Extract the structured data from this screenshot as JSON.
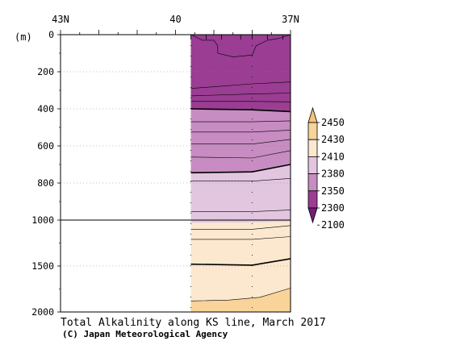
{
  "chart_data": {
    "type": "heatmap",
    "title": "Total Alkalinity along KS line, March 2017",
    "credit": "(C) Japan Meteorological Agency",
    "xlabel": "",
    "ylabel": "(m)",
    "x_axis": {
      "range": [
        43,
        37
      ],
      "tick_labels": [
        {
          "value": 43,
          "label": "43N"
        },
        {
          "value": 40,
          "label": "40"
        },
        {
          "value": 37,
          "label": "37N"
        }
      ]
    },
    "y_axis": {
      "upper_range": [
        0,
        1000
      ],
      "lower_range": [
        1000,
        2000
      ],
      "upper_ticks": [
        {
          "value": 0,
          "label": "0"
        },
        {
          "value": 200,
          "label": "200"
        },
        {
          "value": 400,
          "label": "400"
        },
        {
          "value": 600,
          "label": "600"
        },
        {
          "value": 800,
          "label": "800"
        },
        {
          "value": 1000,
          "label": "1000"
        }
      ],
      "lower_ticks": [
        {
          "value": 1500,
          "label": "1500"
        },
        {
          "value": 2000,
          "label": "2000"
        }
      ]
    },
    "data_extent": {
      "lat_north": 39.6,
      "lat_south": 37.0
    },
    "stations": [
      39.6,
      39.2,
      38.8,
      38.3,
      38.0,
      37.6,
      37.2
    ],
    "bands": [
      {
        "min": 2100,
        "max": 2300,
        "color": "#9a3d93",
        "top": [
          [
            39.6,
            0
          ],
          [
            37.0,
            0
          ]
        ],
        "bottom": [
          [
            39.6,
            400
          ],
          [
            38.0,
            405
          ],
          [
            37.0,
            415
          ]
        ]
      },
      {
        "min": 2300,
        "max": 2350,
        "color": "#c78cc2",
        "top": [
          [
            39.6,
            400
          ],
          [
            38.0,
            405
          ],
          [
            37.0,
            415
          ]
        ],
        "bottom": [
          [
            39.6,
            745
          ],
          [
            38.0,
            740
          ],
          [
            37.0,
            700
          ]
        ]
      },
      {
        "min": 2350,
        "max": 2380,
        "color": "#e2c6e0",
        "top": [
          [
            39.6,
            745
          ],
          [
            38.0,
            740
          ],
          [
            37.0,
            700
          ]
        ],
        "bottom": [
          [
            39.6,
            1030
          ],
          [
            38.0,
            1025
          ],
          [
            37.0,
            1015
          ]
        ]
      },
      {
        "min": 2380,
        "max": 2410,
        "color": "#fbe8cf",
        "top": [
          [
            39.6,
            1030
          ],
          [
            38.0,
            1025
          ],
          [
            37.0,
            1015
          ]
        ],
        "bottom": [
          [
            39.6,
            1880
          ],
          [
            38.6,
            1870
          ],
          [
            37.8,
            1840
          ],
          [
            37.0,
            1740
          ]
        ]
      },
      {
        "min": 2410,
        "max": 2430,
        "color": "#f8d39a",
        "top": [
          [
            39.6,
            1880
          ],
          [
            38.6,
            1870
          ],
          [
            37.8,
            1840
          ],
          [
            37.0,
            1740
          ]
        ],
        "bottom": [
          [
            39.6,
            2000
          ],
          [
            37.0,
            2000
          ]
        ]
      }
    ],
    "contours": [
      {
        "bold": false,
        "points": [
          [
            39.6,
            0
          ],
          [
            39.3,
            30
          ],
          [
            39.0,
            30
          ],
          [
            38.9,
            60
          ],
          [
            38.9,
            100
          ],
          [
            38.5,
            120
          ],
          [
            38.0,
            110
          ],
          [
            37.9,
            60
          ],
          [
            37.6,
            30
          ],
          [
            37.3,
            20
          ],
          [
            37.0,
            0
          ]
        ]
      },
      {
        "bold": false,
        "points": [
          [
            39.6,
            290
          ],
          [
            38.0,
            265
          ],
          [
            37.0,
            255
          ]
        ]
      },
      {
        "bold": false,
        "points": [
          [
            39.6,
            330
          ],
          [
            38.0,
            320
          ],
          [
            37.0,
            315
          ]
        ]
      },
      {
        "bold": false,
        "points": [
          [
            39.6,
            360
          ],
          [
            38.0,
            360
          ],
          [
            37.0,
            362
          ]
        ]
      },
      {
        "bold": true,
        "points": [
          [
            39.6,
            400
          ],
          [
            38.0,
            405
          ],
          [
            37.0,
            415
          ]
        ]
      },
      {
        "bold": false,
        "points": [
          [
            39.6,
            470
          ],
          [
            38.0,
            470
          ],
          [
            37.0,
            465
          ]
        ]
      },
      {
        "bold": false,
        "points": [
          [
            39.6,
            525
          ],
          [
            38.0,
            525
          ],
          [
            37.0,
            515
          ]
        ]
      },
      {
        "bold": false,
        "points": [
          [
            39.6,
            590
          ],
          [
            38.0,
            590
          ],
          [
            37.0,
            565
          ]
        ]
      },
      {
        "bold": false,
        "points": [
          [
            39.6,
            660
          ],
          [
            38.0,
            665
          ],
          [
            37.0,
            625
          ]
        ]
      },
      {
        "bold": true,
        "points": [
          [
            39.6,
            745
          ],
          [
            38.0,
            740
          ],
          [
            37.0,
            700
          ]
        ]
      },
      {
        "bold": false,
        "points": [
          [
            39.6,
            790
          ],
          [
            38.0,
            790
          ],
          [
            37.0,
            775
          ]
        ]
      },
      {
        "bold": false,
        "points": [
          [
            39.6,
            955
          ],
          [
            38.0,
            955
          ],
          [
            37.0,
            945
          ]
        ]
      },
      {
        "bold": false,
        "points": [
          [
            39.6,
            1100
          ],
          [
            38.0,
            1100
          ],
          [
            37.0,
            1060
          ]
        ]
      },
      {
        "bold": false,
        "points": [
          [
            39.6,
            1210
          ],
          [
            38.0,
            1210
          ],
          [
            37.0,
            1180
          ]
        ]
      },
      {
        "bold": true,
        "points": [
          [
            39.6,
            1480
          ],
          [
            38.0,
            1490
          ],
          [
            37.0,
            1420
          ]
        ]
      },
      {
        "bold": false,
        "points": [
          [
            39.6,
            1880
          ],
          [
            38.6,
            1870
          ],
          [
            37.8,
            1840
          ],
          [
            37.0,
            1740
          ]
        ]
      }
    ],
    "colorbar": {
      "labels": [
        "2450",
        "2430",
        "2410",
        "2380",
        "2350",
        "2300",
        "2100"
      ],
      "colors": [
        "#f6c479",
        "#f8d39a",
        "#fbe8cf",
        "#e2c6e0",
        "#c78cc2",
        "#9a3d93",
        "#7a1a78"
      ]
    }
  }
}
